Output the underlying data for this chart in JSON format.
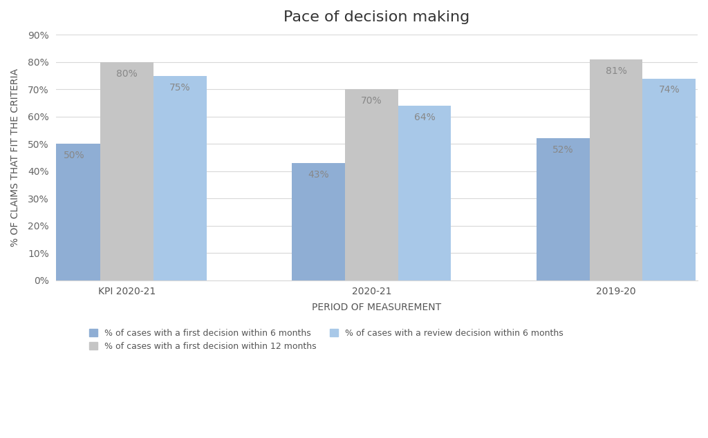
{
  "title": "Pace of decision making",
  "xlabel": "PERIOD OF MEASUREMENT",
  "ylabel": "% OF CLAIMS THAT FIT THE CRITERIA",
  "categories": [
    "KPI 2020-21",
    "2020-21",
    "2019-20"
  ],
  "series": {
    "first_decision_6m": {
      "label": "% of cases with a first decision within 6 months",
      "values": [
        0.5,
        0.43,
        0.52
      ],
      "color": "#8faed4"
    },
    "first_decision_12m": {
      "label": "% of cases with a first decision within 12 months",
      "values": [
        0.8,
        0.7,
        0.81
      ],
      "color": "#c5c5c5"
    },
    "review_decision_6m": {
      "label": "% of cases with a review decision within 6 months",
      "values": [
        0.75,
        0.64,
        0.74
      ],
      "color": "#a8c8e8"
    }
  },
  "ylim": [
    0,
    0.9
  ],
  "yticks": [
    0,
    0.1,
    0.2,
    0.3,
    0.4,
    0.5,
    0.6,
    0.7,
    0.8,
    0.9
  ],
  "ytick_labels": [
    "0%",
    "10%",
    "20%",
    "30%",
    "40%",
    "50%",
    "60%",
    "70%",
    "80%",
    "90%"
  ],
  "background_color": "#ffffff",
  "bar_width": 0.26,
  "group_positions": [
    0.35,
    1.55,
    2.75
  ],
  "title_fontsize": 16,
  "label_fontsize": 9,
  "tick_fontsize": 10,
  "annotation_fontsize": 10,
  "annotation_color": "#888888"
}
